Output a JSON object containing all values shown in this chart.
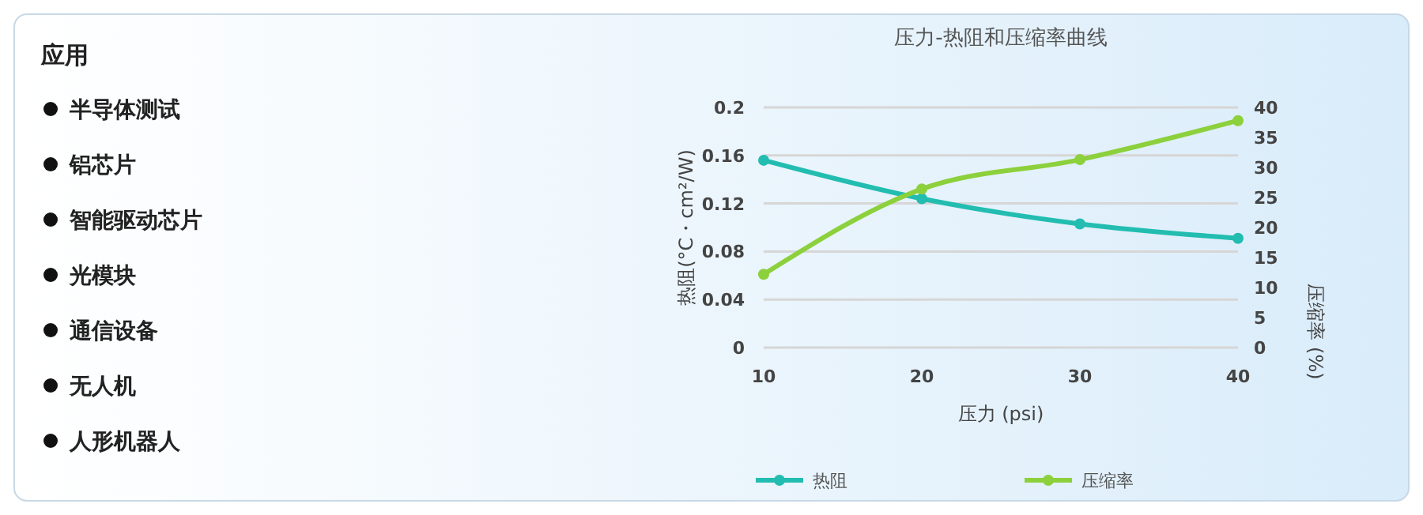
{
  "chart_data": [
    {
      "type": "other",
      "title": "应用",
      "annotations": [
        "半导体测试",
        "铝芯片",
        "智能驱动芯片",
        "光模块",
        "通信设备",
        "无人机",
        "人形机器人"
      ]
    },
    {
      "type": "line",
      "title": "压力-热阻和压缩率曲线",
      "xlabel": "压力 (psi)",
      "ylabel": "热阻(°C・cm²/W)",
      "y2label": "压缩率 (%)",
      "x": [
        10,
        20,
        30,
        40
      ],
      "xlim": [
        10,
        40
      ],
      "xticks": [
        10,
        20,
        30,
        40
      ],
      "ylim": [
        0,
        0.2
      ],
      "yticks": [
        0,
        0.04,
        0.08,
        0.12,
        0.16,
        0.2
      ],
      "y2lim": [
        0,
        40
      ],
      "y2ticks": [
        0,
        5,
        10,
        15,
        20,
        25,
        30,
        35,
        40
      ],
      "grid": "y",
      "legend": "bottom",
      "marker": "circle",
      "line_style": "solid",
      "series": [
        {
          "name": "热阻",
          "color": "#22bdb0",
          "values": [
            0.156,
            0.124,
            0.103,
            0.091
          ]
        },
        {
          "name": "压缩率",
          "color": "#8cd03c",
          "values": [
            12.2,
            26.4,
            31.3,
            37.8
          ],
          "axis": "y2"
        }
      ]
    }
  ]
}
